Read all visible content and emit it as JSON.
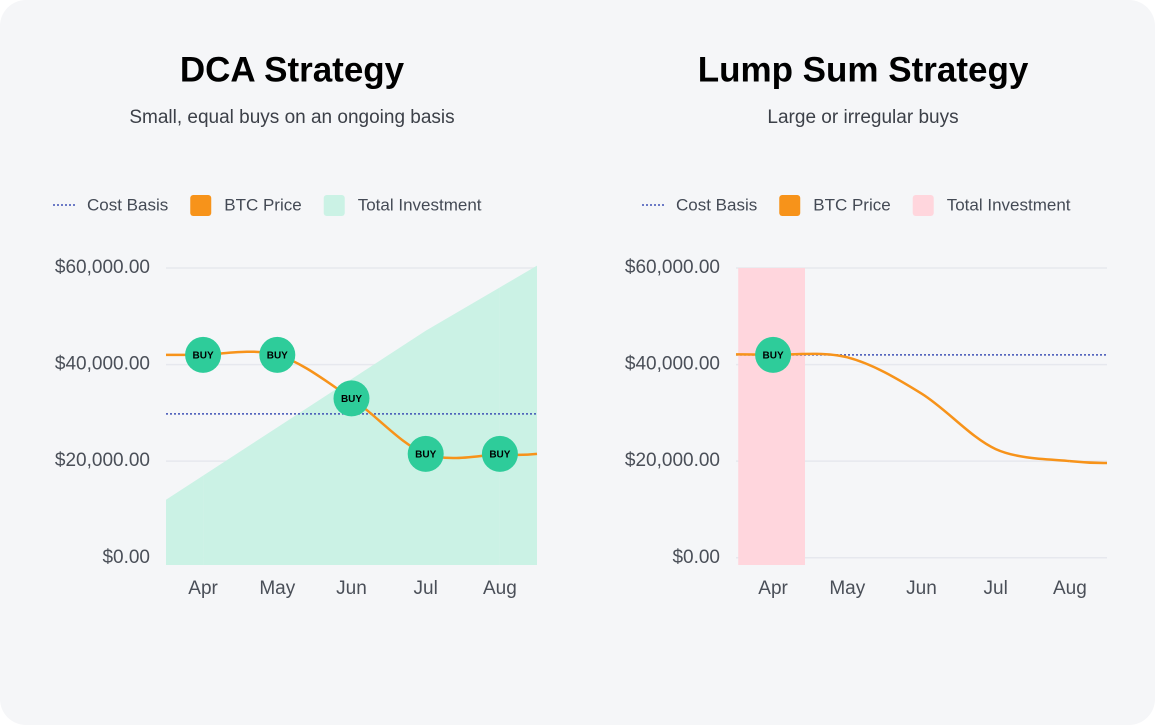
{
  "chart_data": [
    {
      "type": "line",
      "title": "DCA Strategy",
      "subtitle": "Small, equal buys on an ongoing basis",
      "categories": [
        "Apr",
        "May",
        "Jun",
        "Jul",
        "Aug"
      ],
      "series": [
        {
          "name": "Cost Basis",
          "type": "hline",
          "color": "#3f51b5",
          "value": 29800
        },
        {
          "name": "BTC Price",
          "type": "line",
          "color": "#f7931a",
          "values": [
            42000,
            42000,
            33000,
            21500,
            21500
          ]
        },
        {
          "name": "Total Investment",
          "type": "area",
          "color": "#cbf2e5",
          "values": [
            17000,
            27000,
            37000,
            47000,
            56000
          ]
        }
      ],
      "buys": [
        "Apr",
        "May",
        "Jun",
        "Jul",
        "Aug"
      ],
      "buy_label": "BUY",
      "buy_color": "#2ecc9a",
      "ylim": [
        -1500,
        60000
      ],
      "yticks": [
        {
          "value": 0,
          "label": "$0.00"
        },
        {
          "value": 20000,
          "label": "$20,000.00"
        },
        {
          "value": 40000,
          "label": "$40,000.00"
        },
        {
          "value": 60000,
          "label": "$60,000.00"
        }
      ],
      "grid": true
    },
    {
      "type": "line",
      "title": "Lump Sum Strategy",
      "subtitle": "Large or irregular buys",
      "categories": [
        "Apr",
        "May",
        "Jun",
        "Jul",
        "Aug"
      ],
      "series": [
        {
          "name": "Cost Basis",
          "type": "hline",
          "color": "#3f51b5",
          "value": 42000
        },
        {
          "name": "BTC Price",
          "type": "line",
          "color": "#f7931a",
          "values": [
            42000,
            41500,
            34000,
            22500,
            20000
          ]
        },
        {
          "name": "Total Investment",
          "type": "bar",
          "color": "#ffd6dd",
          "values": [
            60000,
            null,
            null,
            null,
            null
          ]
        }
      ],
      "buys": [
        "Apr"
      ],
      "buy_label": "BUY",
      "buy_color": "#2ecc9a",
      "ylim": [
        -1500,
        60000
      ],
      "yticks": [
        {
          "value": 0,
          "label": "$0.00"
        },
        {
          "value": 20000,
          "label": "$20,000.00"
        },
        {
          "value": 40000,
          "label": "$40,000.00"
        },
        {
          "value": 60000,
          "label": "$60,000.00"
        }
      ],
      "grid": true
    }
  ]
}
